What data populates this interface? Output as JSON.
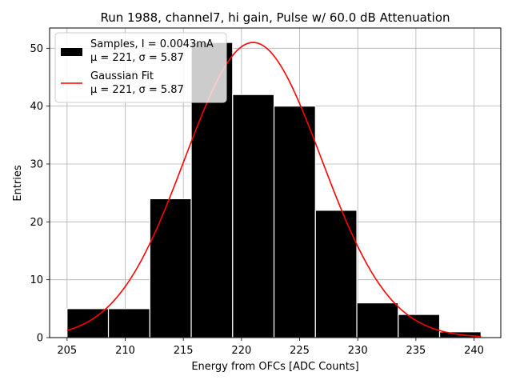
{
  "chart_data": {
    "type": "bar",
    "title": "Run 1988, channel7, hi gain, Pulse w/ 60.0 dB Attenuation",
    "xlabel": "Energy from OFCs [ADC Counts]",
    "ylabel": "Entries",
    "xlim": [
      203.5,
      242.3
    ],
    "ylim": [
      0,
      53.5
    ],
    "grid": true,
    "x_ticks": [
      205,
      210,
      215,
      220,
      225,
      230,
      235,
      240
    ],
    "y_ticks": [
      0,
      10,
      20,
      30,
      40,
      50
    ],
    "histogram": {
      "name": "Samples, I = 0.0043mA",
      "stats_label": "μ = 221, σ = 5.87",
      "bin_edges": [
        205.0,
        208.56,
        212.12,
        215.68,
        219.24,
        222.8,
        226.36,
        229.92,
        233.48,
        237.04,
        240.6
      ],
      "counts": [
        5,
        5,
        24,
        51,
        42,
        40,
        22,
        6,
        4,
        1
      ],
      "color": "#000000",
      "edge_color": "#ffffff"
    },
    "fit": {
      "name": "Gaussian Fit",
      "stats_label": "μ = 221, σ = 5.87",
      "mu": 221.0,
      "sigma": 5.87,
      "amplitude": 51.0,
      "x_range": [
        205.0,
        240.6
      ],
      "color": "#ff0000"
    },
    "legend_position": "upper-left"
  }
}
